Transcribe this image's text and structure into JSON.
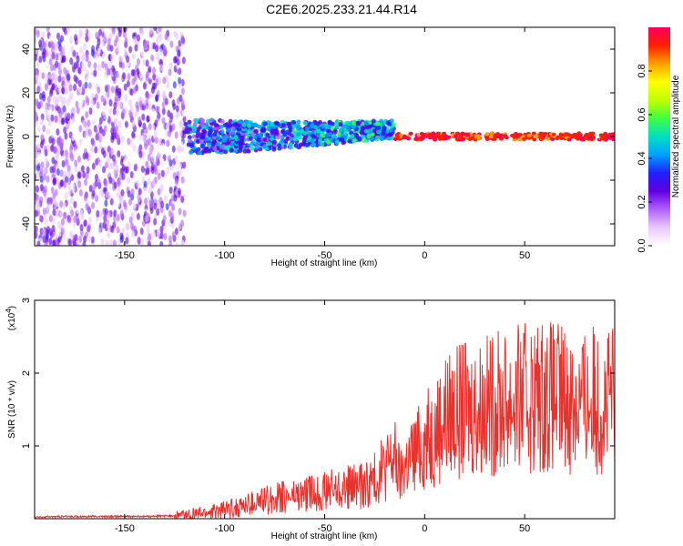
{
  "title": "C2E6.2025.233.21.44.R14",
  "colors": {
    "snr_line": "#e8322b",
    "colormap": [
      "#ffffff",
      "#e8c8ff",
      "#b060ff",
      "#6000e0",
      "#2020ff",
      "#00a0ff",
      "#00e0c0",
      "#40ff40",
      "#c0ff00",
      "#ffff00",
      "#ffa000",
      "#ff2000",
      "#ff0060"
    ]
  },
  "chart_data": [
    {
      "type": "heatmap",
      "xlabel": "Height of straight line (km)",
      "ylabel": "Frequency (Hz)",
      "xlim": [
        -195,
        95
      ],
      "ylim": [
        -50,
        50
      ],
      "xticks": [
        -150,
        -100,
        -50,
        0,
        50
      ],
      "xtick_labels": [
        "-150",
        "-100",
        "-50",
        "0",
        "50"
      ],
      "yticks": [
        -40,
        -20,
        0,
        20,
        40
      ],
      "ytick_labels": [
        "-40",
        "-20",
        "0",
        "20",
        "40"
      ],
      "colorbar": {
        "label": "Normalized spectral amplitude",
        "range": [
          0,
          1
        ],
        "ticks": [
          0.0,
          0.2,
          0.4,
          0.6,
          0.8
        ],
        "tick_labels": [
          "0.0",
          "0.2",
          "0.4",
          "0.6",
          "0.8"
        ]
      }
    },
    {
      "type": "line",
      "xlabel": "Height of straight line (km)",
      "ylabel": "SNR (10 * v/v)",
      "multiplier_label": "(x10",
      "multiplier_exp": "4",
      "xlim": [
        -195,
        95
      ],
      "ylim": [
        0,
        3
      ],
      "xticks": [
        -150,
        -100,
        -50,
        0,
        50
      ],
      "xtick_labels": [
        "-150",
        "-100",
        "-50",
        "0",
        "50"
      ],
      "yticks": [
        1,
        2,
        3
      ],
      "ytick_labels": [
        "1",
        "2",
        "3"
      ],
      "series": [
        {
          "x": [
            -195,
            -180,
            -160,
            -140,
            -125,
            -120,
            -110,
            -100,
            -90,
            -80,
            -70,
            -60,
            -50,
            -40,
            -30,
            -25,
            -20,
            -15,
            -12,
            -10,
            -5,
            0,
            5,
            10,
            15,
            20,
            30,
            40,
            50,
            60,
            70,
            80,
            85,
            90,
            95
          ],
          "y": [
            0.02,
            0.03,
            0.03,
            0.03,
            0.04,
            0.05,
            0.08,
            0.12,
            0.18,
            0.25,
            0.3,
            0.33,
            0.38,
            0.42,
            0.46,
            0.55,
            0.7,
            0.85,
            0.55,
            0.75,
            0.9,
            1.05,
            1.2,
            1.4,
            1.45,
            1.5,
            1.55,
            1.6,
            1.65,
            1.7,
            1.65,
            1.6,
            1.65,
            1.55,
            1.7
          ]
        }
      ]
    }
  ]
}
